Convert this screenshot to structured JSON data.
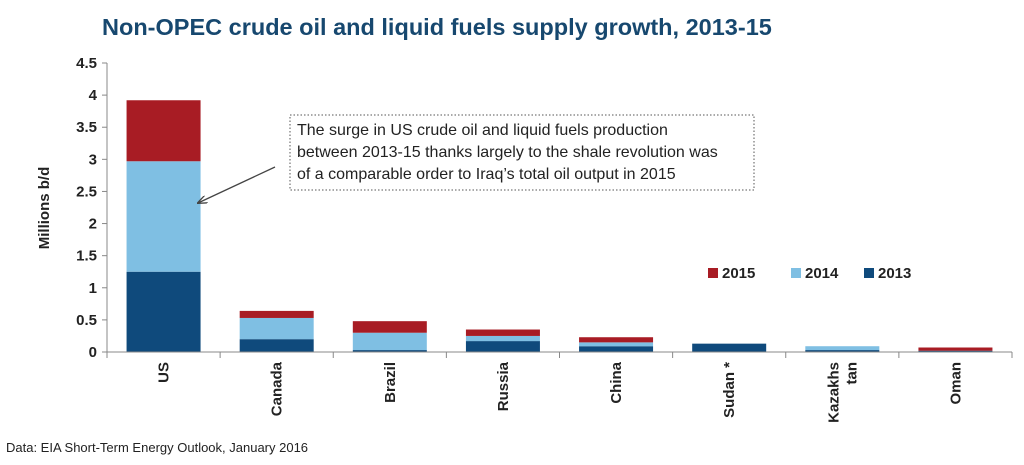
{
  "chart_data": {
    "type": "bar",
    "stacked": true,
    "title": "Non-OPEC crude oil and liquid fuels supply growth, 2013-15",
    "xlabel": "",
    "ylabel": "Millions b/d",
    "ylim": [
      0,
      4.5
    ],
    "yticks": [
      "0",
      "0.5",
      "1",
      "1.5",
      "2",
      "2.5",
      "3",
      "3.5",
      "4",
      "4.5"
    ],
    "grid": false,
    "legend_placement": "right",
    "categories": [
      "US",
      "Canada",
      "Brazil",
      "Russia",
      "China",
      "Sudan *",
      "Kazakhs tan",
      "Oman"
    ],
    "category_lines": [
      [
        "US"
      ],
      [
        "Canada"
      ],
      [
        "Brazil"
      ],
      [
        "Russia"
      ],
      [
        "China"
      ],
      [
        "Sudan *"
      ],
      [
        "Kazakhs",
        "tan"
      ],
      [
        "Oman"
      ]
    ],
    "series": [
      {
        "name": "2013",
        "color": "#0f4a7c",
        "values": [
          1.25,
          0.2,
          0.03,
          0.17,
          0.09,
          0.13,
          0.03,
          0.02
        ]
      },
      {
        "name": "2014",
        "color": "#7fbfe3",
        "values": [
          1.72,
          0.33,
          0.27,
          0.08,
          0.06,
          0.0,
          0.06,
          0.0
        ]
      },
      {
        "name": "2015",
        "color": "#a81c24",
        "values": [
          0.95,
          0.11,
          0.18,
          0.1,
          0.08,
          0.0,
          0.0,
          0.05
        ]
      }
    ],
    "legend_order": [
      "2015",
      "2014",
      "2013"
    ],
    "annotation": {
      "lines": [
        "The surge in US crude oil and liquid fuels production",
        "between 2013-15 thanks largely to the shale revolution was",
        "of a comparable order to Iraq’s total oil output in 2015"
      ]
    }
  },
  "source": "Data: EIA  Short-Term Energy Outlook, January 2016"
}
